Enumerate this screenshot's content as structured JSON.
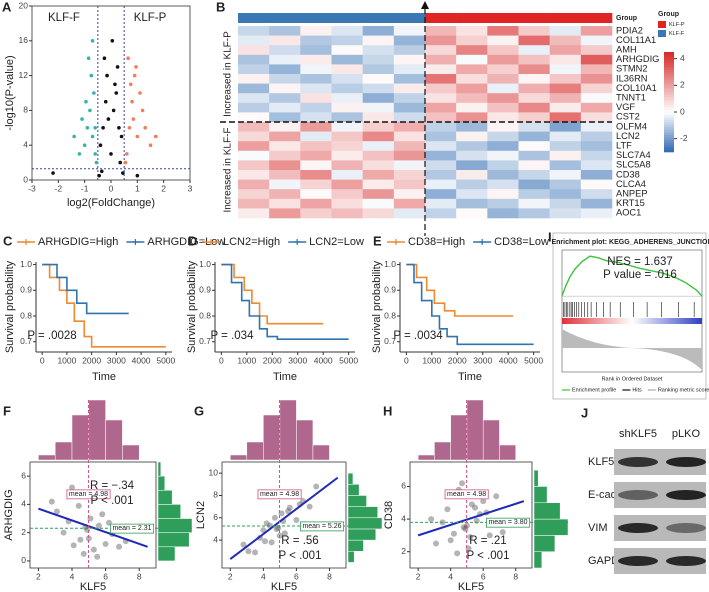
{
  "chart_data": [
    {
      "type": "scatter",
      "label": "A",
      "xlabel": "log2(FoldChange)",
      "ylabel": "-log10(P-value)",
      "annotations": [
        "KLF-F",
        "KLF-P"
      ],
      "xlim": [
        -3,
        3
      ],
      "xticks": [
        -3,
        -2,
        -1,
        0,
        1,
        2,
        3
      ],
      "ylim": [
        0,
        20
      ],
      "yticks": [
        0,
        4,
        8,
        12,
        16,
        20
      ],
      "vlines": [
        -0.5,
        0.5
      ],
      "hline": 1.3,
      "series": [
        {
          "color": "#111111",
          "x": [
            -0.4,
            -0.3,
            -0.2,
            -0.1,
            0,
            0.1,
            0.2,
            0.3,
            0.4,
            -0.35,
            0.35,
            -0.15,
            0.15,
            -0.45,
            0.45,
            0.05,
            -0.25,
            0.25,
            -2.2,
            1.0
          ],
          "values": [
            4,
            6,
            9,
            7,
            3,
            8,
            10,
            6,
            5,
            1,
            2,
            12,
            11,
            0.5,
            0.8,
            16,
            14,
            13,
            0.8,
            0.5
          ]
        },
        {
          "color": "#36b3ad",
          "x": [
            -0.6,
            -0.7,
            -0.8,
            -0.9,
            -1.0,
            -1.2,
            -0.65,
            -0.75,
            -0.85,
            -1.1,
            -0.55,
            -0.95,
            -1.4,
            -0.7,
            -0.6
          ],
          "values": [
            3,
            5,
            8,
            6,
            4,
            3,
            10,
            12,
            14,
            7,
            2,
            9,
            5,
            16,
            6
          ]
        },
        {
          "color": "#f27c5c",
          "x": [
            0.6,
            0.7,
            0.8,
            0.9,
            1.0,
            1.2,
            1.5,
            0.65,
            0.75,
            0.85,
            1.1,
            1.3,
            0.55,
            1.7,
            0.95
          ],
          "values": [
            3,
            6,
            9,
            12,
            5,
            8,
            4,
            14,
            11,
            7,
            10,
            6,
            2,
            5,
            13
          ]
        }
      ]
    },
    {
      "type": "heatmap",
      "label": "B",
      "annotation_label": "Group",
      "legend_title": "Group",
      "groups": [
        {
          "name": "KLF-P",
          "color": "#e02424"
        },
        {
          "name": "KLF-F",
          "color": "#3a78b5"
        }
      ],
      "column_group": [
        1,
        1,
        1,
        1,
        1,
        1,
        0,
        0,
        0,
        0,
        0,
        0
      ],
      "row_groups": [
        {
          "label": "Increased in KLF-P",
          "rows": 10
        },
        {
          "label": "Increased in KLF-F",
          "rows": 10
        }
      ],
      "rows": [
        "PDIA2",
        "COL11A1",
        "AMH",
        "ARHGDIG",
        "STMN2",
        "IL36RN",
        "COL10A1",
        "TNNT1",
        "VGF",
        "CST2",
        "OLFM4",
        "LCN2",
        "LTF",
        "SLC7A4",
        "SLC5A8",
        "CD38",
        "CLCA4",
        "ANPEP",
        "KRT15",
        "AOC1"
      ],
      "zlim": [
        -3,
        4.5
      ],
      "colorbar_ticks": [
        4,
        2,
        0,
        -2
      ],
      "matrix": [
        [
          -0.8,
          -1.2,
          0.3,
          -0.5,
          -1.6,
          -0.2,
          1.5,
          0.6,
          2.8,
          1.1,
          -0.4,
          2.0
        ],
        [
          -0.4,
          0.5,
          -1.1,
          -0.9,
          0.2,
          -1.5,
          2.2,
          1.0,
          0.3,
          3.1,
          1.4,
          -0.2
        ],
        [
          0.6,
          -0.7,
          -1.3,
          0.1,
          -0.6,
          -1.0,
          0.8,
          2.6,
          1.2,
          -0.3,
          1.9,
          1.1
        ],
        [
          -1.2,
          -0.3,
          0.4,
          -1.4,
          -0.8,
          0.2,
          1.7,
          -0.1,
          2.1,
          1.3,
          0.5,
          3.4
        ],
        [
          -0.9,
          -1.5,
          -0.2,
          0.5,
          -1.1,
          -0.4,
          0.4,
          1.8,
          1.0,
          2.4,
          -0.2,
          1.5
        ],
        [
          0.3,
          -0.8,
          -1.2,
          -0.6,
          0.1,
          -1.3,
          2.9,
          0.7,
          1.6,
          0.2,
          1.2,
          2.3
        ],
        [
          -1.4,
          0.2,
          -0.5,
          -1.0,
          -0.7,
          0.4,
          1.1,
          2.0,
          -0.3,
          1.7,
          2.7,
          0.9
        ],
        [
          -0.5,
          -1.1,
          0.6,
          -0.3,
          -1.6,
          -0.9,
          0.6,
          1.4,
          2.2,
          0.8,
          1.6,
          -0.1
        ],
        [
          -1.0,
          -0.4,
          -0.9,
          0.3,
          -0.2,
          -1.4,
          1.9,
          0.3,
          1.3,
          2.5,
          0.4,
          1.8
        ],
        [
          0.1,
          -1.3,
          -0.6,
          -1.2,
          0.5,
          -0.7,
          1.3,
          2.3,
          0.5,
          1.0,
          3.0,
          0.7
        ],
        [
          1.4,
          0.3,
          2.1,
          -0.2,
          1.0,
          1.7,
          -0.9,
          -1.4,
          0.2,
          -0.6,
          -1.8,
          -0.3
        ],
        [
          0.8,
          1.9,
          -0.4,
          1.2,
          2.5,
          0.6,
          -1.2,
          0.3,
          -0.8,
          -1.5,
          -0.4,
          -1.0
        ],
        [
          2.0,
          0.5,
          1.3,
          0.9,
          -0.3,
          1.5,
          -0.5,
          -1.1,
          -1.6,
          0.1,
          -0.9,
          -1.3
        ],
        [
          -0.1,
          1.1,
          1.8,
          0.4,
          1.3,
          2.2,
          -1.5,
          -0.6,
          -0.2,
          -1.2,
          0.3,
          -0.8
        ],
        [
          1.2,
          2.3,
          0.2,
          1.6,
          0.7,
          -0.2,
          -0.7,
          -1.7,
          -0.9,
          0.2,
          -1.3,
          -0.5
        ],
        [
          0.5,
          1.4,
          2.4,
          -0.3,
          1.8,
          0.9,
          -1.1,
          0.4,
          -1.4,
          -0.8,
          -0.2,
          -1.6
        ],
        [
          1.7,
          -0.2,
          0.9,
          2.0,
          0.4,
          1.2,
          -0.3,
          -1.0,
          -0.6,
          -1.7,
          -1.1,
          0.1
        ],
        [
          0.9,
          1.6,
          0.1,
          1.1,
          2.2,
          0.3,
          -1.6,
          -0.5,
          0.2,
          -1.0,
          -1.4,
          -0.7
        ],
        [
          1.5,
          0.6,
          1.9,
          0.7,
          -0.1,
          1.8,
          -0.4,
          -1.3,
          -1.0,
          -0.2,
          -0.8,
          -1.5
        ],
        [
          0.4,
          2.1,
          1.0,
          1.4,
          0.8,
          -0.4,
          -0.9,
          0.1,
          -1.5,
          -1.1,
          -0.6,
          -0.3
        ]
      ]
    },
    {
      "type": "line",
      "step": true,
      "label": "C",
      "xlabel": "Time",
      "ylabel": "Survival probability",
      "annotations": [
        "P = .0028"
      ],
      "xlim": [
        -250,
        5250
      ],
      "xticks": [
        0,
        1000,
        2000,
        3000,
        4000,
        5000
      ],
      "ylim": [
        0.66,
        1.01
      ],
      "yticks": [
        0.7,
        0.8,
        0.9,
        {
          "value": 1,
          "label": "1.0"
        }
      ],
      "series": [
        {
          "name": "ARHGDIG=High",
          "color": "#ee8a32",
          "x": [
            0,
            300,
            700,
            1000,
            1300,
            1700,
            2000,
            5000
          ],
          "values": [
            1,
            0.95,
            0.9,
            0.85,
            0.78,
            0.72,
            0.68,
            0.68
          ]
        },
        {
          "name": "ARHGDIG=Low",
          "color": "#2f74b0",
          "x": [
            0,
            600,
            1000,
            1400,
            1800,
            3500
          ],
          "values": [
            1,
            0.95,
            0.9,
            0.85,
            0.81,
            0.81
          ]
        }
      ]
    },
    {
      "type": "line",
      "step": true,
      "label": "D",
      "xlabel": "Time",
      "ylabel": "Survival probability",
      "annotations": [
        "P = .034"
      ],
      "xlim": [
        -250,
        5250
      ],
      "xticks": [
        0,
        1000,
        2000,
        3000,
        4000,
        5000
      ],
      "ylim": [
        0.66,
        1.01
      ],
      "yticks": [
        0.7,
        0.8,
        0.9,
        {
          "value": 1,
          "label": "1.0"
        }
      ],
      "series": [
        {
          "name": "LCN2=High",
          "color": "#ee8a32",
          "x": [
            0,
            500,
            900,
            1200,
            1500,
            1800,
            4000
          ],
          "values": [
            1,
            0.95,
            0.9,
            0.85,
            0.8,
            0.77,
            0.77
          ]
        },
        {
          "name": "LCN2=Low",
          "color": "#2f74b0",
          "x": [
            0,
            400,
            800,
            1100,
            1500,
            1800,
            2200,
            5000
          ],
          "values": [
            1,
            0.93,
            0.86,
            0.8,
            0.75,
            0.72,
            0.71,
            0.71
          ]
        }
      ]
    },
    {
      "type": "line",
      "step": true,
      "label": "E",
      "xlabel": "Time",
      "ylabel": "Survival probability",
      "annotations": [
        "P = .0034"
      ],
      "xlim": [
        -250,
        5250
      ],
      "xticks": [
        0,
        1000,
        2000,
        3000,
        4000,
        5000
      ],
      "ylim": [
        0.66,
        1.01
      ],
      "yticks": [
        0.7,
        0.8,
        0.9,
        {
          "value": 1,
          "label": "1.0"
        }
      ],
      "series": [
        {
          "name": "CD38=High",
          "color": "#ee8a32",
          "x": [
            0,
            400,
            800,
            1100,
            1500,
            1900,
            4200
          ],
          "values": [
            1,
            0.95,
            0.9,
            0.85,
            0.82,
            0.8,
            0.8
          ]
        },
        {
          "name": "CD38=Low",
          "color": "#2f74b0",
          "x": [
            0,
            300,
            600,
            1000,
            1300,
            1600,
            2000,
            5000
          ],
          "values": [
            1,
            0.93,
            0.86,
            0.8,
            0.75,
            0.72,
            0.69,
            0.69
          ]
        }
      ]
    },
    {
      "type": "enrichment",
      "label": "I",
      "title": "Enrichment plot: KEGG_ADHERENS_JUNCTION",
      "annotations": [
        "NES = 1.637",
        "P value = .016"
      ],
      "xlabel": "Rank in Ordered Dataset",
      "legend": [
        "Enrichment profile",
        "Hits",
        "Ranking metric scores"
      ],
      "color": "#3ec23e",
      "xlim": [
        0,
        12500
      ],
      "ylim": [
        -0.05,
        0.6
      ],
      "x": [
        0,
        300,
        700,
        1200,
        1800,
        2500,
        3200,
        4000,
        5000,
        6000,
        7000,
        8000,
        9000,
        10000,
        11000,
        12000,
        12500
      ],
      "values": [
        0,
        0.12,
        0.25,
        0.36,
        0.45,
        0.52,
        0.5,
        0.46,
        0.44,
        0.4,
        0.36,
        0.33,
        0.3,
        0.25,
        0.18,
        0.08,
        0
      ],
      "hits": [
        120,
        260,
        400,
        520,
        700,
        820,
        950,
        1100,
        1300,
        1500,
        1750,
        2000,
        2300,
        2600,
        3100,
        3700,
        4300,
        5200,
        6400,
        7600,
        8900,
        10400,
        11800
      ]
    },
    {
      "type": "scatter",
      "label": "F",
      "xlabel": "KLF5",
      "ylabel": "ARHGDIG",
      "annotations": [
        "R = −.34",
        "P < .001"
      ],
      "xlim": [
        1.5,
        9
      ],
      "xticks": [
        2,
        4,
        6,
        8
      ],
      "ylim": [
        -0.5,
        7
      ],
      "yticks": [
        0,
        2,
        4,
        6
      ],
      "x": [
        3.1,
        3.8,
        4.2,
        4.5,
        4.9,
        5.1,
        5.3,
        5.6,
        6.0,
        6.4,
        4.0,
        4.7,
        5.8,
        3.5,
        6.8,
        4.4,
        5.0,
        5.5,
        2.8,
        7.2,
        4.1,
        5.2,
        6.2,
        4.8
      ],
      "values": [
        3.5,
        2.8,
        4.6,
        1.5,
        2.2,
        3.0,
        0.8,
        2.5,
        1.2,
        1.9,
        5.2,
        0.5,
        3.3,
        2.0,
        1.0,
        3.9,
        1.6,
        0.3,
        4.2,
        1.4,
        1.1,
        4.8,
        2.7,
        2.4
      ],
      "fit": {
        "x": [
          2,
          8.5
        ],
        "values": [
          3.7,
          1.0
        ]
      },
      "means": [
        {
          "axis": "x",
          "value": 4.98,
          "label": "mean = 4.98"
        },
        {
          "axis": "y",
          "value": 2.31,
          "label": "mean = 2.31"
        }
      ],
      "x_hist": {
        "bins": [
          2,
          3,
          4,
          5,
          6,
          7,
          8
        ],
        "counts": [
          5,
          18,
          45,
          60,
          40,
          15
        ]
      },
      "y_hist": {
        "bins": [
          0,
          1,
          2,
          3,
          4,
          5,
          6,
          7
        ],
        "counts": [
          30,
          55,
          60,
          40,
          25,
          12,
          5
        ]
      }
    },
    {
      "type": "scatter",
      "label": "G",
      "xlabel": "KLF5",
      "ylabel": "LCN2",
      "annotations": [
        "R = .56",
        "P < .001"
      ],
      "xlim": [
        1.5,
        9
      ],
      "xticks": [
        2,
        4,
        6,
        8
      ],
      "ylim": [
        1.5,
        11
      ],
      "yticks": [
        4,
        6,
        8,
        10
      ],
      "x": [
        3.1,
        3.8,
        4.2,
        4.5,
        4.9,
        5.1,
        5.3,
        5.6,
        6.0,
        6.4,
        4.0,
        4.7,
        5.8,
        3.5,
        6.8,
        4.4,
        5.0,
        5.5,
        2.8,
        7.2,
        4.1,
        5.2,
        6.2,
        4.8
      ],
      "values": [
        3.0,
        4.2,
        5.5,
        3.8,
        5.1,
        6.4,
        4.6,
        6.9,
        5.8,
        7.5,
        4.9,
        6.0,
        8.1,
        2.9,
        7.0,
        5.3,
        4.4,
        6.6,
        3.6,
        8.8,
        3.9,
        5.7,
        7.2,
        5.0
      ],
      "fit": {
        "x": [
          2,
          8.5
        ],
        "values": [
          2.3,
          9.6
        ]
      },
      "means": [
        {
          "axis": "x",
          "value": 4.98,
          "label": "mean = 4.98"
        },
        {
          "axis": "y",
          "value": 5.26,
          "label": "mean = 5.26"
        }
      ],
      "x_hist": {
        "bins": [
          2,
          3,
          4,
          5,
          6,
          7,
          8
        ],
        "counts": [
          5,
          18,
          45,
          60,
          40,
          15
        ]
      },
      "y_hist": {
        "bins": [
          2,
          3,
          4,
          5,
          6,
          7,
          8,
          9,
          10
        ],
        "counts": [
          10,
          25,
          45,
          55,
          48,
          30,
          18,
          8
        ]
      }
    },
    {
      "type": "scatter",
      "label": "H",
      "xlabel": "KLF5",
      "ylabel": "CD38",
      "annotations": [
        "R = .21",
        "P < .001"
      ],
      "xlim": [
        1.5,
        9
      ],
      "xticks": [
        2,
        4,
        6,
        8
      ],
      "ylim": [
        1,
        7.5
      ],
      "yticks": [
        2,
        4,
        6
      ],
      "x": [
        3.1,
        3.8,
        4.2,
        4.5,
        4.9,
        5.1,
        5.3,
        5.6,
        6.0,
        6.4,
        4.0,
        4.7,
        5.8,
        3.5,
        6.8,
        4.4,
        5.0,
        5.5,
        2.8,
        7.2,
        4.1,
        5.2,
        6.2,
        4.8
      ],
      "values": [
        2.5,
        4.6,
        3.1,
        5.8,
        3.4,
        2.2,
        4.9,
        3.9,
        5.1,
        3.0,
        2.7,
        6.2,
        4.3,
        3.8,
        5.4,
        1.9,
        3.6,
        4.7,
        4.0,
        3.2,
        5.6,
        2.9,
        4.4,
        3.5
      ],
      "fit": {
        "x": [
          2,
          8.5
        ],
        "values": [
          3.0,
          5.1
        ]
      },
      "means": [
        {
          "axis": "x",
          "value": 4.98,
          "label": "mean = 4.98"
        },
        {
          "axis": "y",
          "value": 3.8,
          "label": "mean = 3.80"
        }
      ],
      "x_hist": {
        "bins": [
          2,
          3,
          4,
          5,
          6,
          7,
          8
        ],
        "counts": [
          5,
          18,
          45,
          60,
          40,
          15
        ]
      },
      "y_hist": {
        "bins": [
          1,
          2,
          3,
          4,
          5,
          6,
          7
        ],
        "counts": [
          15,
          40,
          65,
          50,
          25,
          8
        ]
      }
    },
    {
      "type": "blot",
      "label": "J",
      "lanes": [
        "shKLF5",
        "pLKO"
      ],
      "proteins": [
        "KLF5",
        "E-cad",
        "VIM",
        "GAPDH"
      ]
    }
  ]
}
